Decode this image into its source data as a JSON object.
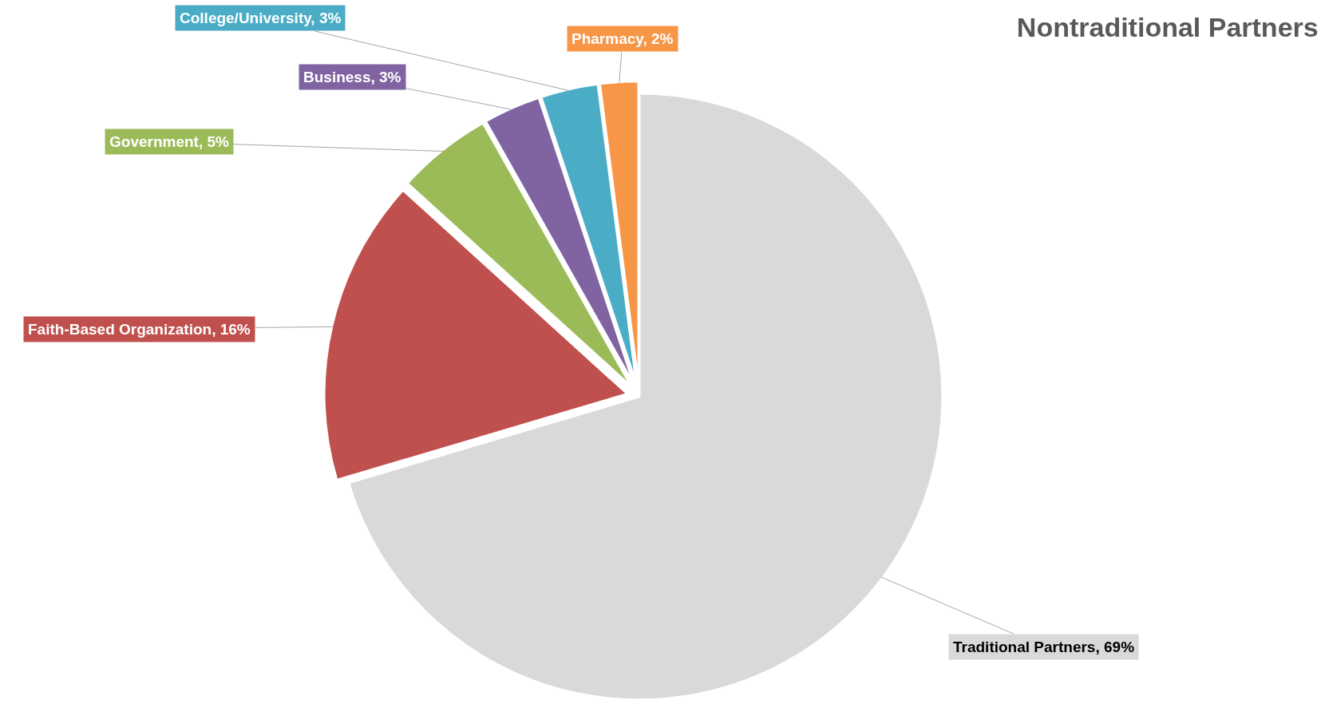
{
  "chart_data": {
    "type": "pie",
    "title": "Nontraditional Partners",
    "categories": [
      "Traditional Partners",
      "Faith-Based Organization",
      "Government",
      "Business",
      "College/University",
      "Pharmacy"
    ],
    "values": [
      69,
      16,
      5,
      3,
      3,
      2
    ],
    "value_labels": [
      "69%",
      "16%",
      "5%",
      "3%",
      "3%",
      "2%"
    ],
    "colors": [
      "#d9d9d9",
      "#c0504d",
      "#9bbb59",
      "#8064a2",
      "#4bacc6",
      "#f79646"
    ]
  }
}
